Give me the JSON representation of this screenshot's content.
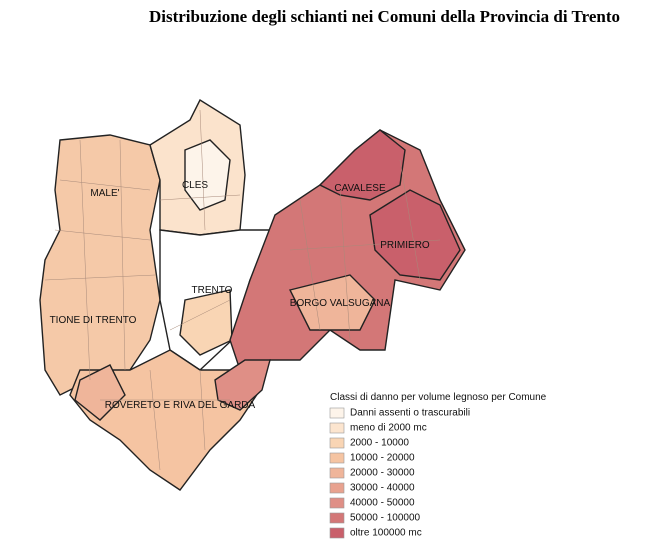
{
  "title": "Distribuzione degli schianti nei Comuni della Provincia di Trento",
  "districts": [
    {
      "label": "MALE'"
    },
    {
      "label": "CLES"
    },
    {
      "label": "CAVALESE"
    },
    {
      "label": "PRIMIERO"
    },
    {
      "label": "TRENTO"
    },
    {
      "label": "BORGO VALSUGANA"
    },
    {
      "label": "TIONE DI TRENTO"
    },
    {
      "label": "ROVERETO E RIVA DEL GARDA"
    }
  ],
  "legend": {
    "title": "Classi di danno per volume legnoso per Comune",
    "items": [
      {
        "label": "Danni assenti o trascurabili",
        "color": "#fdf4ea"
      },
      {
        "label": "meno di 2000 mc",
        "color": "#fce5cf"
      },
      {
        "label": "2000 - 10000",
        "color": "#f9d5b4"
      },
      {
        "label": "10000 - 20000",
        "color": "#f5c4a2"
      },
      {
        "label": "20000 - 30000",
        "color": "#efb59a"
      },
      {
        "label": "30000 - 40000",
        "color": "#e8a28f"
      },
      {
        "label": "40000 - 50000",
        "color": "#df8f86"
      },
      {
        "label": "50000 - 100000",
        "color": "#d37777"
      },
      {
        "label": "oltre 100000 mc",
        "color": "#c9606b"
      }
    ]
  }
}
